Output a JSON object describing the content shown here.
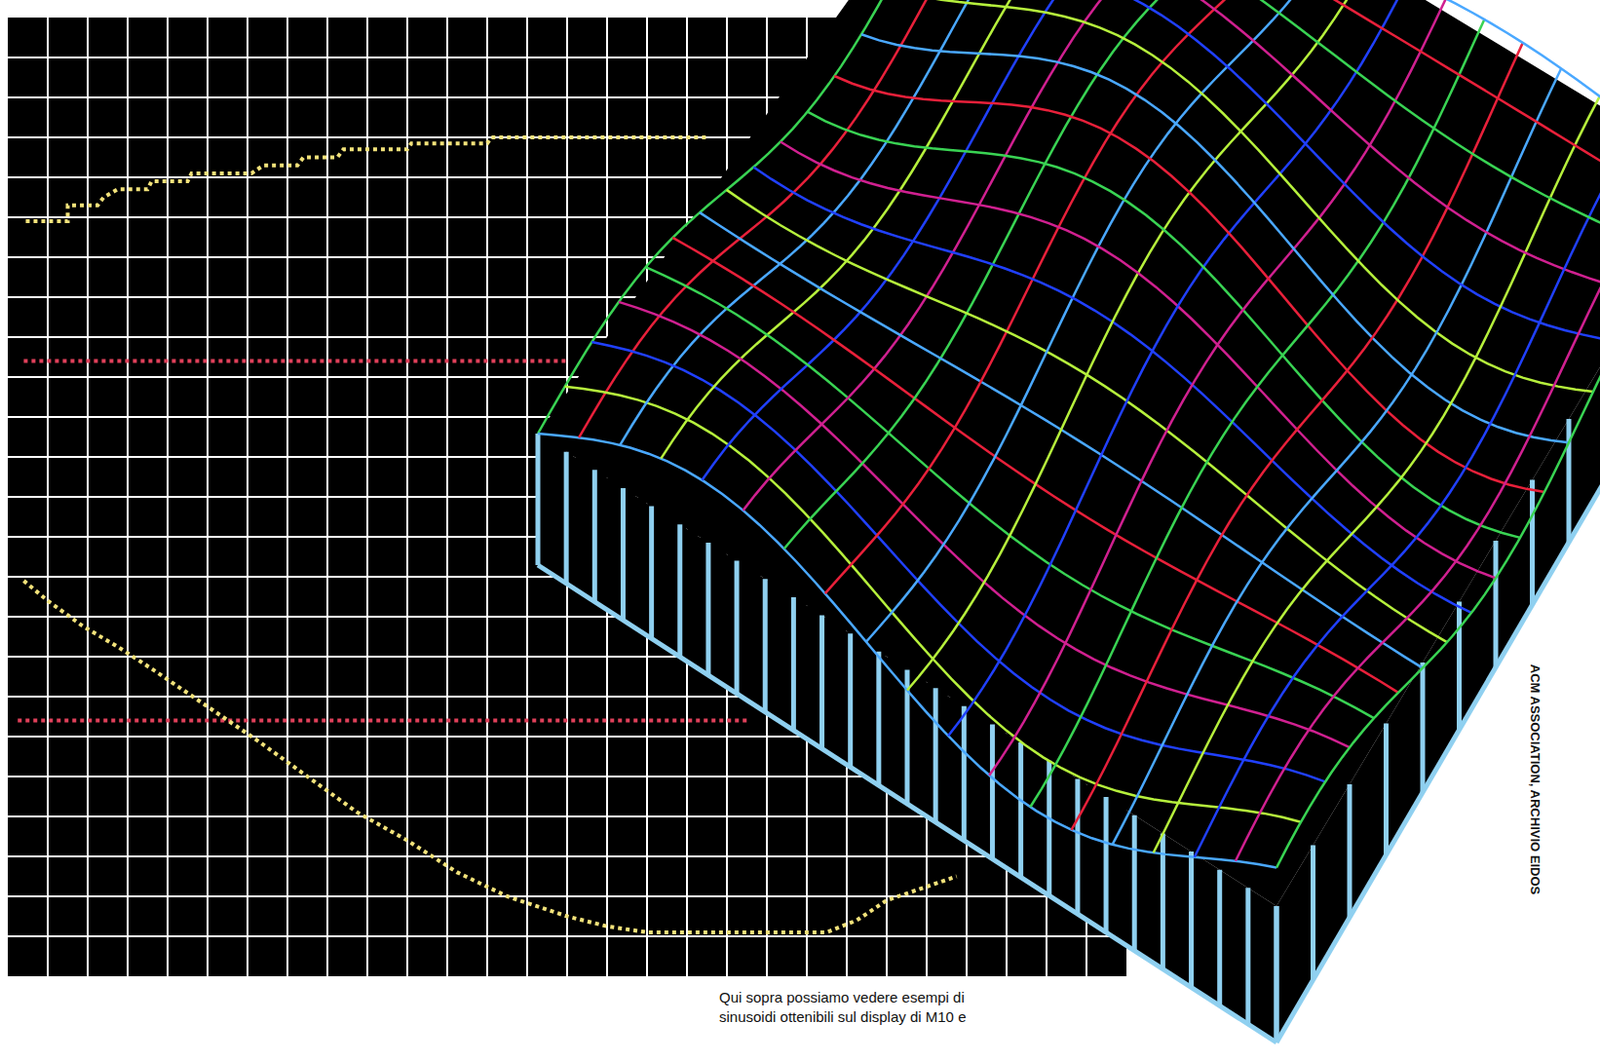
{
  "chart_data": {
    "type": "line",
    "tick_labels": false,
    "grid": true,
    "xlim": [
      0,
      28
    ],
    "xticks": [
      0,
      1,
      2,
      3,
      4,
      5,
      6,
      7,
      8,
      9,
      10,
      11,
      12,
      13,
      14,
      15,
      16,
      17,
      18,
      19,
      20,
      21,
      22,
      23,
      24,
      25,
      26,
      27,
      28
    ],
    "ylim": [
      0,
      24
    ],
    "yticks": [
      0,
      1,
      2,
      3,
      4,
      5,
      6,
      7,
      8,
      9,
      10,
      11,
      12,
      13,
      14,
      15,
      16,
      17,
      18,
      19,
      20,
      21,
      22,
      23,
      24
    ],
    "series": [
      {
        "color": "#f2e27a",
        "line_style": "dotted",
        "x": [
          0.45,
          1.5,
          1.5,
          2.25,
          2.4,
          2.75,
          3.5,
          3.6,
          4.5,
          4.6,
          6.1,
          6.4,
          7.25,
          7.4,
          8.25,
          8.4,
          10,
          10.1,
          12,
          12.1,
          17.5
        ],
        "values": [
          18.9,
          18.9,
          19.3,
          19.3,
          19.5,
          19.7,
          19.7,
          19.9,
          19.9,
          20.1,
          20.1,
          20.3,
          20.3,
          20.5,
          20.5,
          20.7,
          20.7,
          20.85,
          20.85,
          21.0,
          21.0
        ]
      },
      {
        "color": "#e0405a",
        "line_style": "dotted",
        "x": [
          0.4,
          14
        ],
        "values": [
          15.4,
          15.4
        ]
      },
      {
        "color": "#e0405a",
        "line_style": "dotted",
        "x": [
          0.25,
          18.5
        ],
        "values": [
          6.4,
          6.4
        ]
      },
      {
        "color": "#f2e27a",
        "line_style": "dotted",
        "x": [
          0.4,
          1,
          1.9,
          2.75,
          3.75,
          5,
          6.25,
          7.5,
          8.75,
          10,
          11.25,
          12.5,
          14,
          15,
          16,
          20.5,
          21.25,
          22,
          23.75
        ],
        "values": [
          9.9,
          9.4,
          8.75,
          8.25,
          7.6,
          6.75,
          5.9,
          5.0,
          4.1,
          3.4,
          2.6,
          2.0,
          1.5,
          1.25,
          1.1,
          1.1,
          1.4,
          1.9,
          2.5
        ]
      }
    ]
  },
  "caption": [
    "Qui sopra possiamo vedere esempi di",
    "sinusoidi ottenibili sul display di M10 e"
  ],
  "credit": "ACM ASSOCIATION, ARCHIVIO EIDOS"
}
